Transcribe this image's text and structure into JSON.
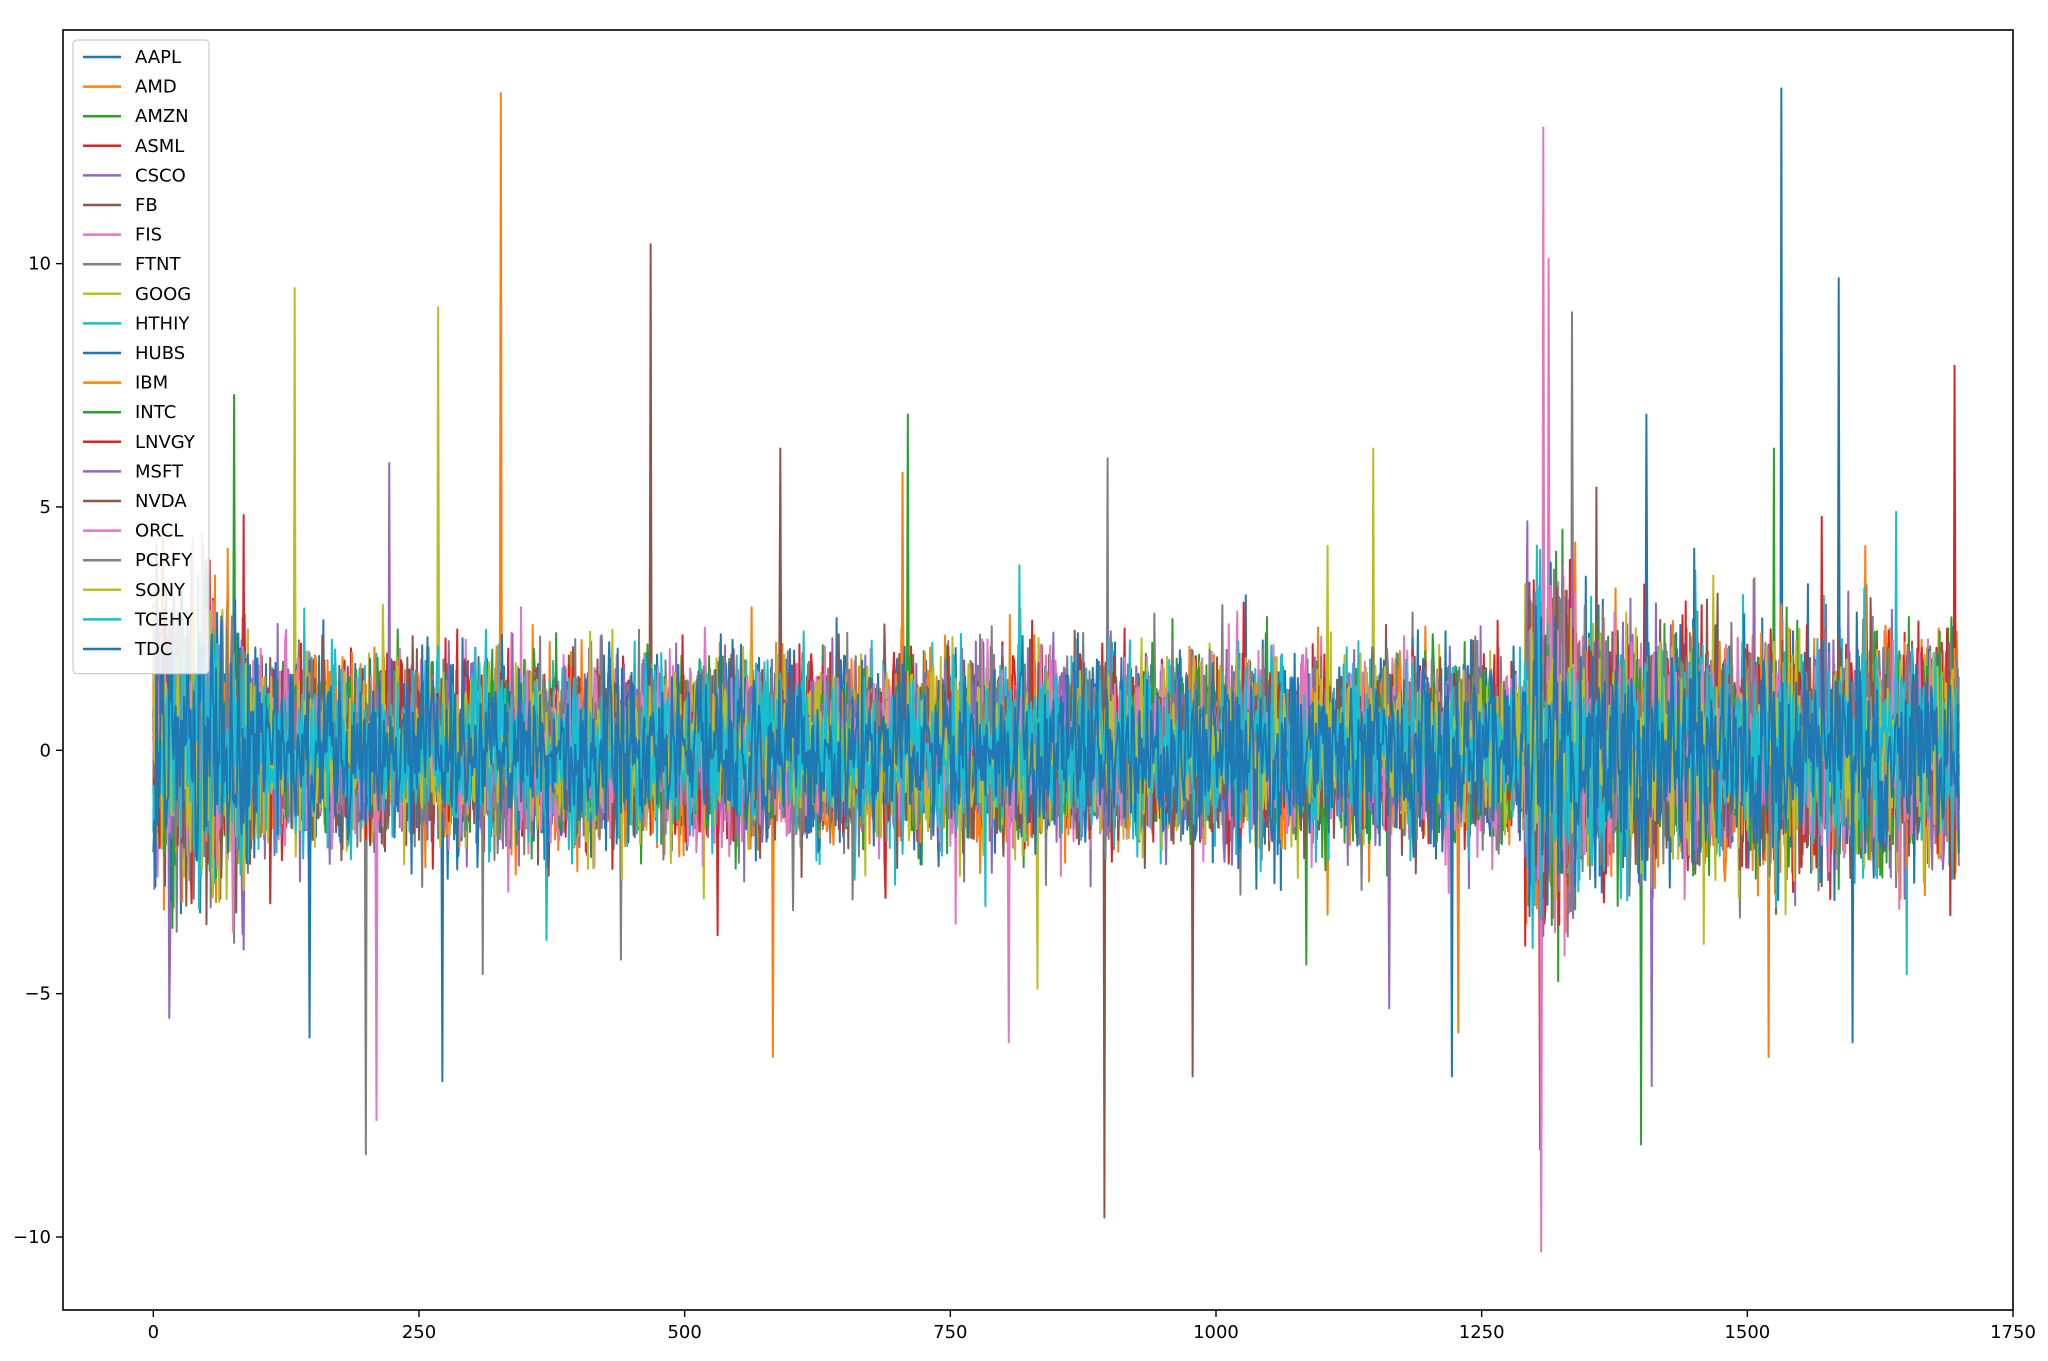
{
  "chart_data": {
    "type": "line",
    "title": "",
    "xlabel": "",
    "ylabel": "",
    "xlim": [
      -85,
      1750
    ],
    "ylim": [
      -11.5,
      14.8
    ],
    "x_ticks": [
      0,
      250,
      500,
      750,
      1000,
      1250,
      1500,
      1750
    ],
    "x_tick_labels": [
      "0",
      "250",
      "500",
      "750",
      "1000",
      "1250",
      "1500",
      "1750"
    ],
    "y_ticks": [
      -10,
      -5,
      0,
      5,
      10
    ],
    "y_tick_labels": [
      "−10",
      "−5",
      "0",
      "5",
      "10"
    ],
    "grid": false,
    "legend_position": "upper-left",
    "n_points": 1700,
    "series": [
      {
        "name": "AAPL",
        "color": "#1f77b4",
        "spikes": [
          [
            1532,
            13.6
          ],
          [
            75,
            -3.2
          ]
        ]
      },
      {
        "name": "AMD",
        "color": "#ff7f0e",
        "spikes": [
          [
            327,
            13.5
          ],
          [
            583,
            -6.3
          ],
          [
            1520,
            -6.3
          ]
        ]
      },
      {
        "name": "AMZN",
        "color": "#2ca02c",
        "spikes": [
          [
            710,
            6.9
          ],
          [
            76,
            7.3
          ],
          [
            1400,
            -8.1
          ]
        ]
      },
      {
        "name": "ASML",
        "color": "#d62728",
        "spikes": [
          [
            1695,
            7.9
          ],
          [
            1305,
            -8.2
          ]
        ]
      },
      {
        "name": "CSCO",
        "color": "#9467bd",
        "spikes": [
          [
            15,
            -5.5
          ],
          [
            1410,
            -6.9
          ]
        ]
      },
      {
        "name": "FB",
        "color": "#8c564b",
        "spikes": [
          [
            468,
            10.4
          ],
          [
            895,
            -9.6
          ],
          [
            978,
            -6.7
          ]
        ]
      },
      {
        "name": "FIS",
        "color": "#e377c2",
        "spikes": [
          [
            1308,
            12.8
          ],
          [
            1306,
            -10.3
          ],
          [
            1313,
            10.1
          ]
        ]
      },
      {
        "name": "FTNT",
        "color": "#7f7f7f",
        "spikes": [
          [
            200,
            -8.3
          ],
          [
            1335,
            9.0
          ],
          [
            898,
            6.0
          ]
        ]
      },
      {
        "name": "GOOG",
        "color": "#bcbd22",
        "spikes": [
          [
            133,
            9.5
          ],
          [
            268,
            9.1
          ],
          [
            1148,
            6.2
          ]
        ]
      },
      {
        "name": "HTHIY",
        "color": "#17becf",
        "spikes": [
          [
            1650,
            -4.6
          ],
          [
            815,
            3.8
          ]
        ]
      },
      {
        "name": "HUBS",
        "color": "#1f77b4",
        "spikes": [
          [
            1586,
            9.7
          ],
          [
            1405,
            6.9
          ],
          [
            272,
            -6.8
          ]
        ]
      },
      {
        "name": "IBM",
        "color": "#ff7f0e",
        "spikes": [
          [
            1228,
            -5.8
          ],
          [
            705,
            5.7
          ]
        ]
      },
      {
        "name": "INTC",
        "color": "#2ca02c",
        "spikes": [
          [
            1525,
            6.2
          ],
          [
            1085,
            -4.4
          ]
        ]
      },
      {
        "name": "LNVGY",
        "color": "#d62728",
        "spikes": [
          [
            1570,
            4.8
          ],
          [
            531,
            -3.8
          ]
        ]
      },
      {
        "name": "MSFT",
        "color": "#9467bd",
        "spikes": [
          [
            222,
            5.9
          ],
          [
            1163,
            -5.3
          ]
        ]
      },
      {
        "name": "NVDA",
        "color": "#8c564b",
        "spikes": [
          [
            590,
            6.2
          ],
          [
            1358,
            5.4
          ]
        ]
      },
      {
        "name": "ORCL",
        "color": "#e377c2",
        "spikes": [
          [
            210,
            -7.6
          ],
          [
            805,
            -6.0
          ]
        ]
      },
      {
        "name": "PCRFY",
        "color": "#7f7f7f",
        "spikes": [
          [
            310,
            -4.6
          ],
          [
            440,
            -4.3
          ]
        ]
      },
      {
        "name": "SONY",
        "color": "#bcbd22",
        "spikes": [
          [
            832,
            -4.9
          ],
          [
            1105,
            4.2
          ]
        ]
      },
      {
        "name": "TCEHY",
        "color": "#17becf",
        "spikes": [
          [
            1640,
            4.9
          ],
          [
            370,
            -3.9
          ]
        ]
      },
      {
        "name": "TDC",
        "color": "#1f77b4",
        "spikes": [
          [
            1599,
            -6.0
          ],
          [
            1222,
            -6.7
          ],
          [
            147,
            -5.9
          ]
        ]
      }
    ]
  }
}
